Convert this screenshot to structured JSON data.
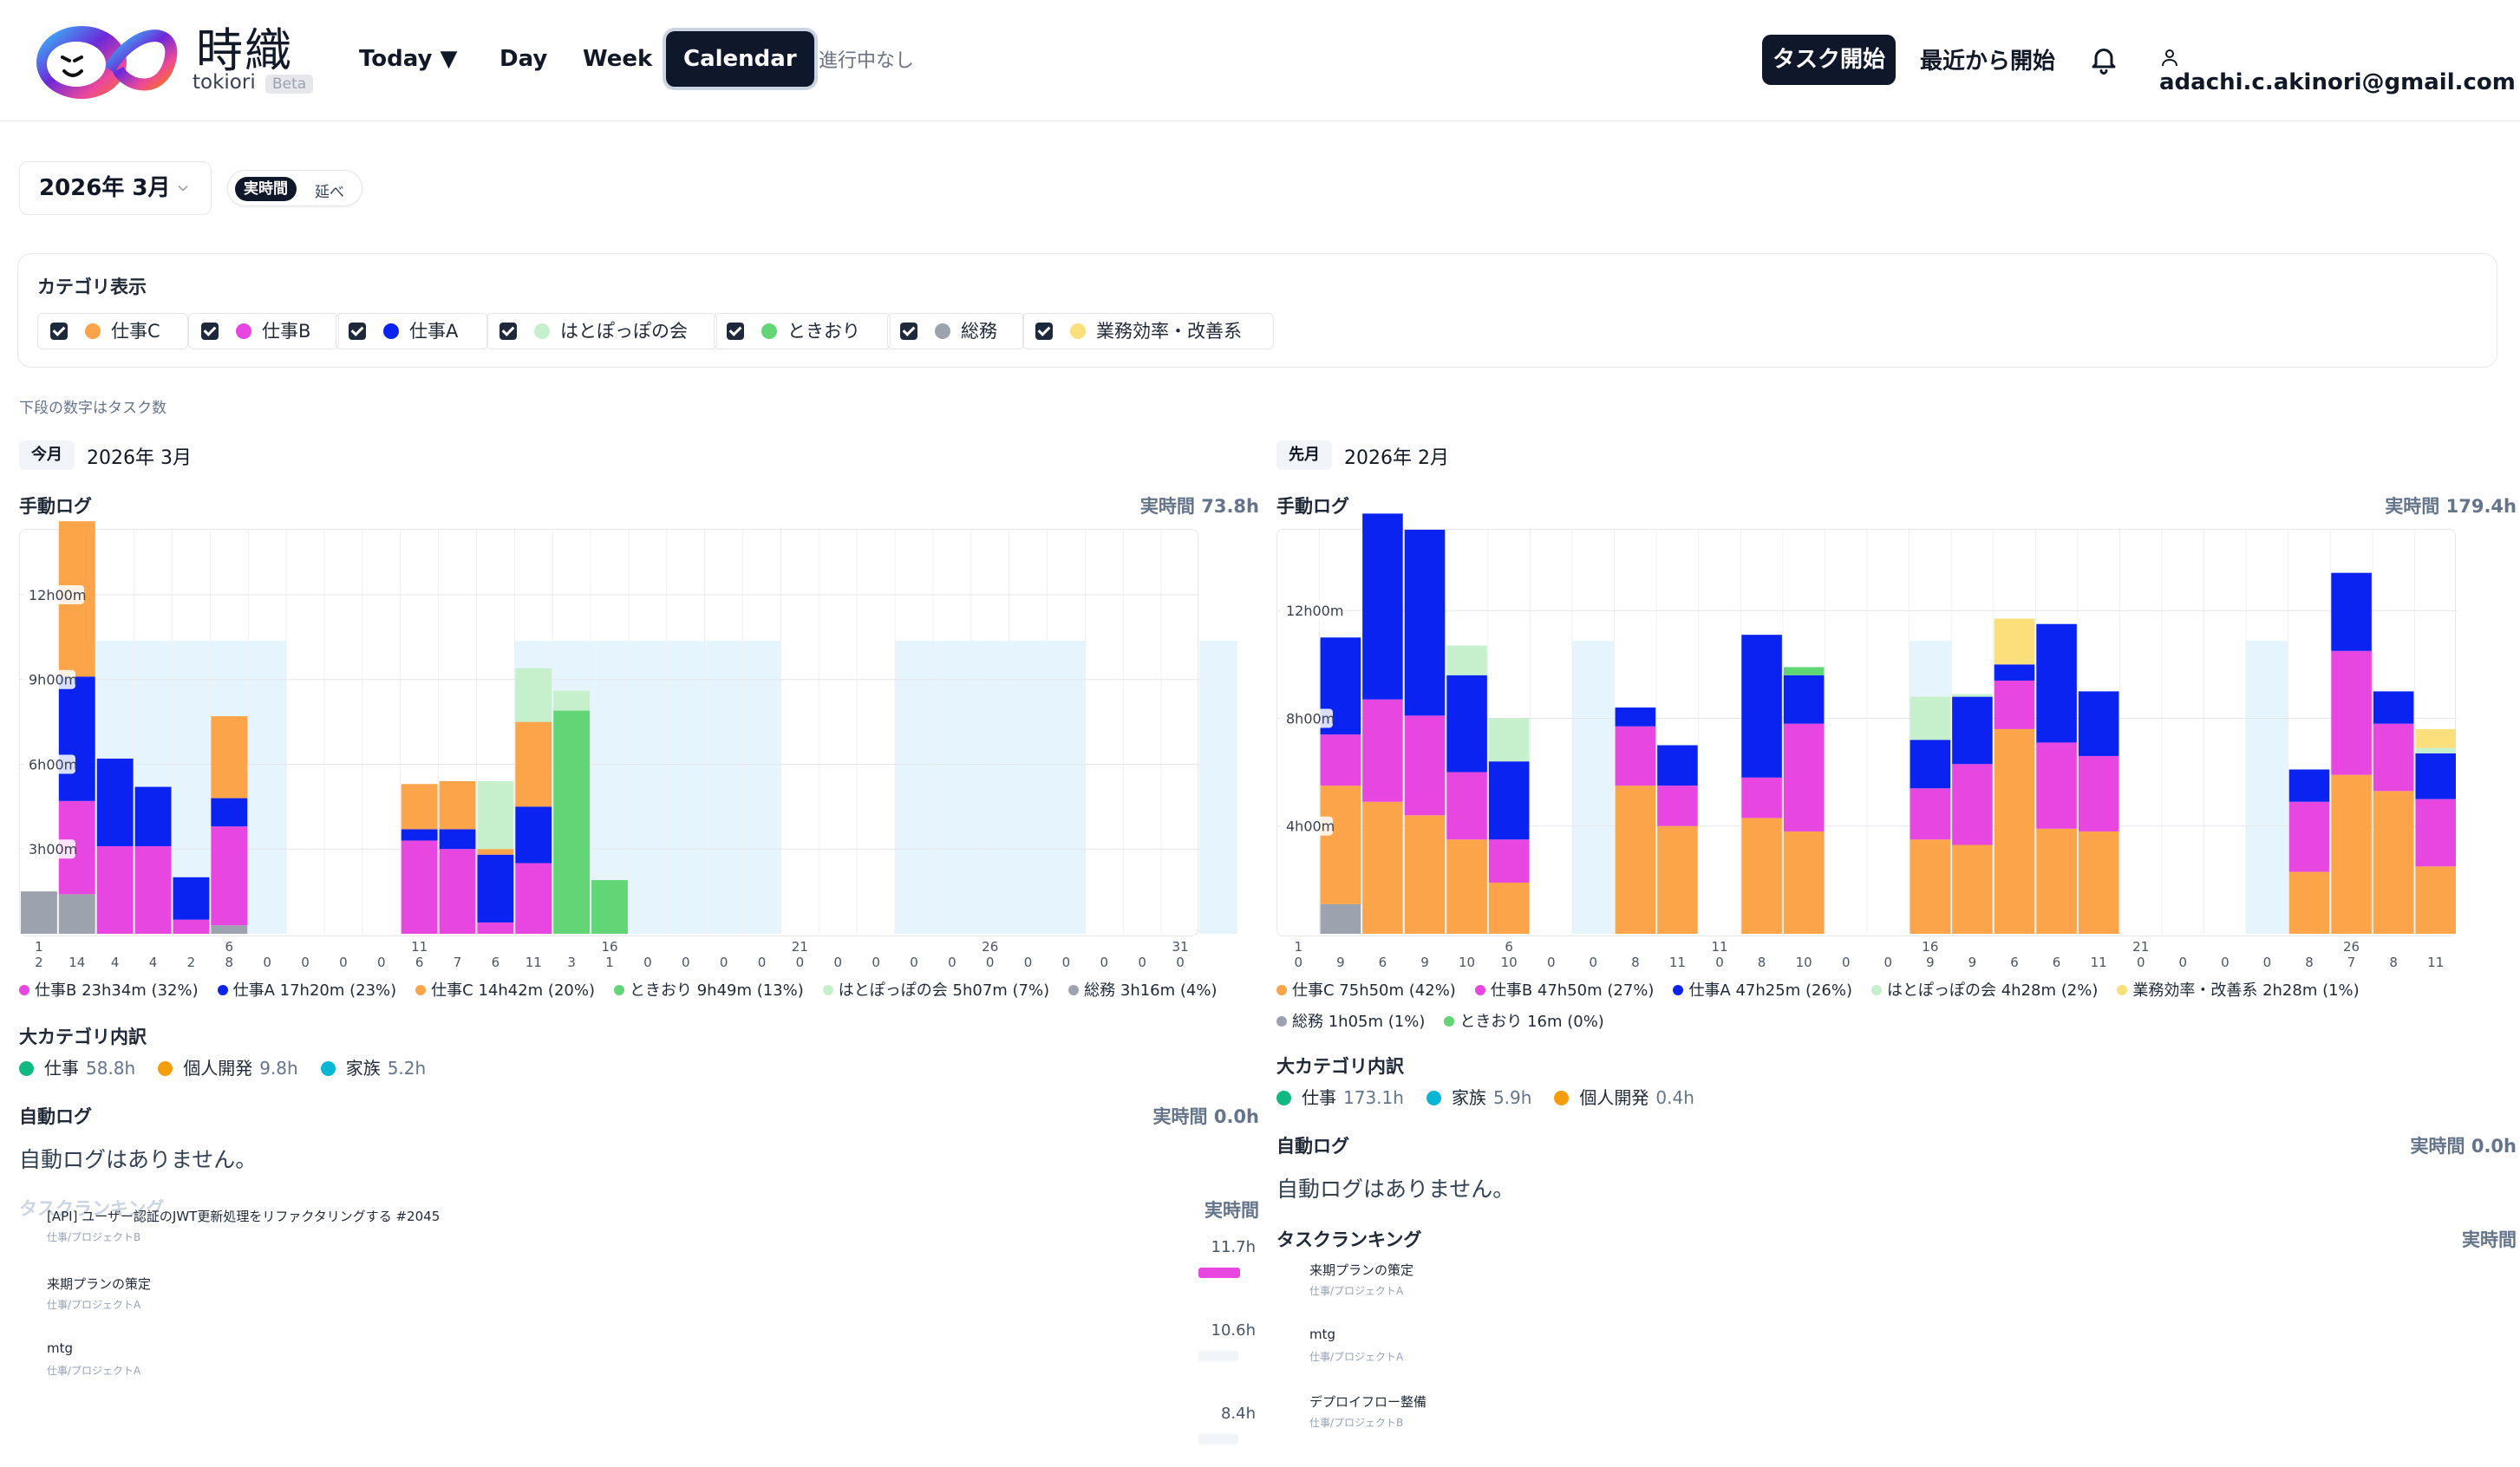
{
  "header": {
    "brand_jp": "時織",
    "brand_en": "tokiori",
    "beta": "Beta",
    "nav": {
      "today": "Today ▼",
      "day": "Day",
      "week": "Week",
      "calendar": "Calendar"
    },
    "status": "進行中なし",
    "start_button": "タスク開始",
    "recent_button": "最近から開始",
    "user_email": "adachi.c.akinori@gmail.com"
  },
  "controls": {
    "month": "2026年 3月",
    "toggle_on": "実時間",
    "toggle_off": "延べ"
  },
  "categories": {
    "title": "カテゴリ表示",
    "items": [
      {
        "label": "仕事C",
        "color": "#fba44a"
      },
      {
        "label": "仕事B",
        "color": "#e846e0"
      },
      {
        "label": "仕事A",
        "color": "#0a23f0"
      },
      {
        "label": "はとぽっぽの会",
        "color": "#c6f0cc"
      },
      {
        "label": "ときおり",
        "color": "#62d677"
      },
      {
        "label": "総務",
        "color": "#9ca3af"
      },
      {
        "label": "業務効率・改善系",
        "color": "#fbdf7a"
      }
    ]
  },
  "note": "下段の数字はタスク数",
  "left": {
    "badge": "今月",
    "month": "2026年 3月",
    "manual_title": "手動ログ",
    "manual_total": "実時間 73.8h",
    "legend": [
      {
        "label": "仕事B 23h34m (32%)",
        "color": "#e846e0"
      },
      {
        "label": "仕事A 17h20m (23%)",
        "color": "#0a23f0"
      },
      {
        "label": "仕事C 14h42m (20%)",
        "color": "#fba44a"
      },
      {
        "label": "ときおり 9h49m (13%)",
        "color": "#62d677"
      },
      {
        "label": "はとぽっぽの会 5h07m (7%)",
        "color": "#c6f0cc"
      },
      {
        "label": "総務 3h16m (4%)",
        "color": "#9ca3af"
      }
    ],
    "bigcat_title": "大カテゴリ内訳",
    "bigcats": [
      {
        "label": "仕事",
        "value": "58.8h",
        "color": "#10b981"
      },
      {
        "label": "個人開発",
        "value": "9.8h",
        "color": "#f59e0b"
      },
      {
        "label": "家族",
        "value": "5.2h",
        "color": "#06b6d4"
      }
    ],
    "auto_title": "自動ログ",
    "auto_total": "実時間 0.0h",
    "auto_empty": "自動ログはありません。",
    "ranking_title": "タスクランキング",
    "ranking_right": "実時間",
    "ranking": [
      {
        "title": "[API] ユーザー認証のJWT更新処理をリファクタリングする #2045",
        "sub": "仕事/プロジェクトB",
        "value": "11.7h",
        "color": "#e846e0",
        "frac": 1.0
      },
      {
        "title": "来期プランの策定",
        "sub": "仕事/プロジェクトA",
        "value": "10.6h",
        "color": "#0a23f0",
        "frac": 0.0
      },
      {
        "title": "mtg",
        "sub": "仕事/プロジェクトA",
        "value": "8.4h",
        "color": "#0a23f0",
        "frac": 0.0
      }
    ],
    "chart_data": {
      "type": "bar",
      "stacked": true,
      "title": "",
      "y_ticks": [
        "3h00m",
        "6h00m",
        "9h00m",
        "12h00m"
      ],
      "y_tick_values": [
        3,
        6,
        9,
        12
      ],
      "ymax": 14.3,
      "days": 31,
      "x_tick_labels": {
        "1": "1",
        "6": "6",
        "11": "11",
        "16": "16",
        "21": "21",
        "26": "26",
        "31": "31"
      },
      "task_counts": [
        2,
        14,
        4,
        4,
        2,
        8,
        0,
        0,
        0,
        0,
        6,
        7,
        6,
        11,
        3,
        1,
        0,
        0,
        0,
        0,
        0,
        0,
        0,
        0,
        0,
        0,
        0,
        0,
        0,
        0,
        0
      ],
      "weekend_shading": [
        [
          3,
          8
        ],
        [
          14,
          21
        ],
        [
          24,
          29
        ],
        [
          32,
          33
        ]
      ],
      "series": [
        {
          "name": "総務",
          "color": "#9ca3af",
          "values": [
            1.5,
            1.4,
            0,
            0,
            0,
            0.3,
            0,
            0,
            0,
            0,
            0,
            0,
            0,
            0,
            0,
            0,
            0,
            0,
            0,
            0,
            0,
            0,
            0,
            0,
            0,
            0,
            0,
            0,
            0,
            0,
            0
          ]
        },
        {
          "name": "仕事B",
          "color": "#e846e0",
          "values": [
            0,
            3.3,
            3.1,
            3.1,
            0.5,
            3.5,
            0,
            0,
            0,
            0,
            3.3,
            3.0,
            0.4,
            2.5,
            0,
            0,
            0,
            0,
            0,
            0,
            0,
            0,
            0,
            0,
            0,
            0,
            0,
            0,
            0,
            0,
            0
          ]
        },
        {
          "name": "仕事A",
          "color": "#0a23f0",
          "values": [
            0,
            4.4,
            3.1,
            2.1,
            1.5,
            1.0,
            0,
            0,
            0,
            0,
            0.4,
            0.7,
            2.4,
            2.0,
            0,
            0,
            0,
            0,
            0,
            0,
            0,
            0,
            0,
            0,
            0,
            0,
            0,
            0,
            0,
            0,
            0
          ]
        },
        {
          "name": "仕事C",
          "color": "#fba44a",
          "values": [
            0,
            5.5,
            0,
            0,
            0,
            2.9,
            0,
            0,
            0,
            0,
            1.6,
            1.7,
            0.2,
            3.0,
            0,
            0,
            0,
            0,
            0,
            0,
            0,
            0,
            0,
            0,
            0,
            0,
            0,
            0,
            0,
            0,
            0
          ]
        },
        {
          "name": "ときおり",
          "color": "#62d677",
          "values": [
            0,
            0,
            0,
            0,
            0,
            0,
            0,
            0,
            0,
            0,
            0,
            0,
            0,
            0,
            7.9,
            1.9,
            0,
            0,
            0,
            0,
            0,
            0,
            0,
            0,
            0,
            0,
            0,
            0,
            0,
            0,
            0
          ]
        },
        {
          "name": "はとぽっぽの会",
          "color": "#c6f0cc",
          "values": [
            0,
            0,
            0,
            0,
            0,
            0,
            0,
            0,
            0,
            0,
            0,
            0,
            2.4,
            1.9,
            0.7,
            0,
            0,
            0,
            0,
            0,
            0,
            0,
            0,
            0,
            0,
            0,
            0,
            0,
            0,
            0,
            0
          ]
        }
      ]
    }
  },
  "right": {
    "badge": "先月",
    "month": "2026年 2月",
    "manual_title": "手動ログ",
    "manual_total": "実時間 179.4h",
    "legend": [
      {
        "label": "仕事C 75h50m (42%)",
        "color": "#fba44a"
      },
      {
        "label": "仕事B 47h50m (27%)",
        "color": "#e846e0"
      },
      {
        "label": "仕事A 47h25m (26%)",
        "color": "#0a23f0"
      },
      {
        "label": "はとぽっぽの会 4h28m (2%)",
        "color": "#c6f0cc"
      },
      {
        "label": "業務効率・改善系 2h28m (1%)",
        "color": "#fbdf7a"
      }
    ],
    "legend2": [
      {
        "label": "総務 1h05m (1%)",
        "color": "#9ca3af"
      },
      {
        "label": "ときおり 16m (0%)",
        "color": "#62d677"
      }
    ],
    "bigcat_title": "大カテゴリ内訳",
    "bigcats": [
      {
        "label": "仕事",
        "value": "173.1h",
        "color": "#10b981"
      },
      {
        "label": "家族",
        "value": "5.9h",
        "color": "#06b6d4"
      },
      {
        "label": "個人開発",
        "value": "0.4h",
        "color": "#f59e0b"
      }
    ],
    "auto_title": "自動ログ",
    "auto_total": "実時間 0.0h",
    "auto_empty": "自動ログはありません。",
    "ranking_title": "タスクランキング",
    "ranking_right": "実時間",
    "ranking": [
      {
        "title": "来期プランの策定",
        "sub": "仕事/プロジェクトA"
      },
      {
        "title": "mtg",
        "sub": "仕事/プロジェクトA"
      },
      {
        "title": "デプロイフロー整備",
        "sub": "仕事/プロジェクトB"
      }
    ],
    "chart_data": {
      "type": "bar",
      "stacked": true,
      "title": "",
      "y_ticks": [
        "4h00m",
        "8h00m",
        "12h00m"
      ],
      "y_tick_values": [
        4,
        8,
        12
      ],
      "ymax": 15,
      "days": 28,
      "x_tick_labels": {
        "1": "1",
        "6": "6",
        "11": "11",
        "16": "16",
        "21": "21",
        "26": "26"
      },
      "task_counts": [
        0,
        9,
        6,
        9,
        10,
        10,
        0,
        0,
        8,
        11,
        0,
        8,
        10,
        0,
        0,
        9,
        9,
        6,
        6,
        11,
        0,
        0,
        0,
        0,
        8,
        7,
        8,
        11
      ],
      "weekend_shading": [
        [
          2,
          3
        ],
        [
          8,
          9
        ],
        [
          16,
          17
        ],
        [
          24,
          25
        ]
      ],
      "series": [
        {
          "name": "総務",
          "color": "#9ca3af",
          "values": [
            0,
            1.1,
            0,
            0,
            0,
            0,
            0,
            0,
            0,
            0,
            0,
            0,
            0,
            0,
            0,
            0,
            0,
            0,
            0,
            0,
            0,
            0,
            0,
            0,
            0,
            0,
            0,
            0
          ]
        },
        {
          "name": "仕事C",
          "color": "#fba44a",
          "values": [
            0,
            4.4,
            4.9,
            4.4,
            3.5,
            1.9,
            0,
            0,
            5.5,
            4.0,
            0,
            4.3,
            3.8,
            0,
            0,
            3.5,
            3.3,
            7.6,
            3.9,
            3.8,
            0,
            0,
            0,
            0,
            2.3,
            5.9,
            5.3,
            2.5
          ]
        },
        {
          "name": "仕事B",
          "color": "#e846e0",
          "values": [
            0,
            1.9,
            3.8,
            3.7,
            2.5,
            1.6,
            0,
            0,
            2.2,
            1.5,
            0,
            1.5,
            4.0,
            0,
            0,
            1.9,
            3.0,
            1.8,
            3.2,
            2.8,
            0,
            0,
            0,
            0,
            2.6,
            4.6,
            2.5,
            2.5
          ]
        },
        {
          "name": "仕事A",
          "color": "#0a23f0",
          "values": [
            0,
            3.6,
            6.9,
            6.9,
            3.6,
            2.9,
            0,
            0,
            0.7,
            1.5,
            0,
            5.3,
            1.8,
            0,
            0,
            1.8,
            2.5,
            0.6,
            4.4,
            2.4,
            0,
            0,
            0,
            0,
            1.2,
            2.9,
            1.2,
            1.7
          ]
        },
        {
          "name": "ときおり",
          "color": "#62d677",
          "values": [
            0,
            0,
            0,
            0,
            0,
            0,
            0,
            0,
            0,
            0,
            0,
            0,
            0.3,
            0,
            0,
            0,
            0,
            0,
            0,
            0,
            0,
            0,
            0,
            0,
            0,
            0,
            0,
            0
          ]
        },
        {
          "name": "はとぽっぽの会",
          "color": "#c6f0cc",
          "values": [
            0,
            0,
            0,
            0,
            1.1,
            1.6,
            0,
            0,
            0,
            0,
            0,
            0,
            0,
            0,
            0,
            1.6,
            0.1,
            0,
            0,
            0,
            0,
            0,
            0,
            0,
            0,
            0,
            0,
            0.2
          ]
        },
        {
          "name": "業務効率・改善系",
          "color": "#fbdf7a",
          "values": [
            0,
            0,
            0,
            0,
            0,
            0,
            0,
            0,
            0,
            0,
            0,
            0,
            0,
            0,
            0,
            0,
            0,
            1.7,
            0,
            0,
            0,
            0,
            0,
            0,
            0,
            0,
            0,
            0.7
          ]
        }
      ]
    }
  }
}
